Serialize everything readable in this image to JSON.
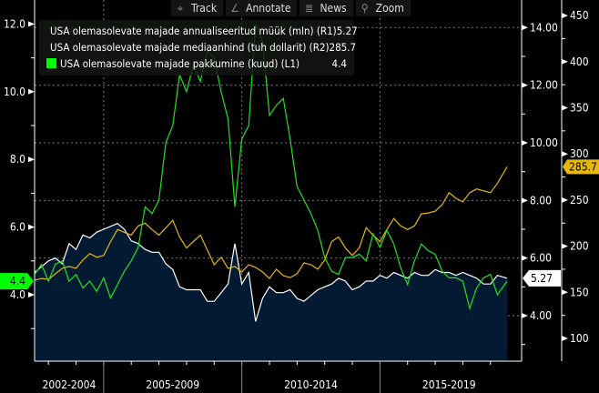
{
  "toolbar": {
    "buttons": [
      {
        "label": "Track",
        "icon": "crosshair-icon"
      },
      {
        "label": "Annotate",
        "icon": "pencil-icon"
      },
      {
        "label": "News",
        "icon": "news-icon"
      },
      {
        "label": "Zoom",
        "icon": "magnifier-icon"
      }
    ]
  },
  "legend": [
    {
      "label": "USA olemasolevate majade annualiseeritud müük (mln) (R1)",
      "value": "5.27",
      "color": "#ffffff"
    },
    {
      "label": "USA olemasolevate majade mediaanhind (tuh dollarit) (R2)",
      "value": "285.7",
      "color": "#e5b80b"
    },
    {
      "label": "USA olemasolevate majade pakkumine (kuud) (L1)",
      "value": "4.4",
      "color": "#00ff00"
    }
  ],
  "badges": {
    "left_value": "4.4",
    "r1_value": "5.27",
    "r2_value": "285.7"
  },
  "colors": {
    "background": "#000000",
    "area_fill": "#021b33",
    "sales": "#ffffff",
    "price": "#e5b80b",
    "supply": "#22e022",
    "grid": "#777777"
  },
  "chart_data": {
    "type": "line",
    "title": "",
    "x_period_labels": [
      "2002-2004",
      "2005-2009",
      "2010-2014",
      "2015-2019"
    ],
    "x_range_years": [
      2002.5,
      2019.6
    ],
    "axes": {
      "L1": {
        "ticks": [
          "4.0",
          "6.0",
          "8.0",
          "10.0",
          "12.0"
        ],
        "range": [
          1.8,
          12.8
        ]
      },
      "R1": {
        "ticks": [
          "4.00",
          "6.00",
          "8.00",
          "10.00",
          "12.00",
          "14.00"
        ],
        "range": [
          2.4,
          14.8
        ]
      },
      "R2": {
        "ticks": [
          "100",
          "150",
          "200",
          "250",
          "300",
          "350",
          "400",
          "450"
        ],
        "range": [
          75,
          460
        ]
      }
    },
    "grid": true,
    "legend_position": "top-left",
    "series": [
      {
        "name": "USA olemasolevate majade annualiseeritud müük (mln) (R1)",
        "axis": "R1",
        "style": "area",
        "x": [
          2002.5,
          2002.75,
          2003.0,
          2003.25,
          2003.5,
          2003.75,
          2004.0,
          2004.25,
          2004.5,
          2004.75,
          2005.0,
          2005.25,
          2005.5,
          2005.75,
          2006.0,
          2006.25,
          2006.5,
          2006.75,
          2007.0,
          2007.25,
          2007.5,
          2007.75,
          2008.0,
          2008.25,
          2008.5,
          2008.75,
          2009.0,
          2009.25,
          2009.5,
          2009.75,
          2010.0,
          2010.25,
          2010.5,
          2010.75,
          2011.0,
          2011.25,
          2011.5,
          2011.75,
          2012.0,
          2012.25,
          2012.5,
          2012.75,
          2013.0,
          2013.25,
          2013.5,
          2013.75,
          2014.0,
          2014.25,
          2014.5,
          2014.75,
          2015.0,
          2015.25,
          2015.5,
          2015.75,
          2016.0,
          2016.25,
          2016.5,
          2016.75,
          2017.0,
          2017.25,
          2017.5,
          2017.75,
          2018.0,
          2018.25,
          2018.5,
          2018.75,
          2019.0,
          2019.25,
          2019.6
        ],
        "values": [
          5.5,
          5.7,
          5.9,
          6.0,
          5.8,
          6.5,
          6.3,
          6.8,
          6.7,
          6.9,
          7.0,
          7.1,
          7.2,
          7.0,
          6.6,
          6.5,
          6.3,
          6.2,
          6.2,
          5.8,
          5.6,
          5.0,
          4.9,
          4.9,
          4.9,
          4.5,
          4.5,
          4.8,
          5.1,
          6.5,
          5.1,
          5.5,
          3.8,
          4.6,
          5.0,
          4.8,
          4.8,
          4.9,
          4.6,
          4.5,
          4.7,
          4.9,
          5.0,
          5.1,
          5.3,
          5.2,
          4.9,
          5.0,
          5.2,
          5.2,
          5.4,
          5.3,
          5.5,
          5.4,
          5.3,
          5.5,
          5.4,
          5.4,
          5.6,
          5.5,
          5.5,
          5.4,
          5.5,
          5.4,
          5.3,
          5.1,
          5.1,
          5.4,
          5.3
        ]
      },
      {
        "name": "USA olemasolevate majade mediaanhind (tuh dollarit) (R2)",
        "axis": "R2",
        "style": "line",
        "x": [
          2002.5,
          2002.75,
          2003.0,
          2003.25,
          2003.5,
          2003.75,
          2004.0,
          2004.25,
          2004.5,
          2004.75,
          2005.0,
          2005.25,
          2005.5,
          2005.75,
          2006.0,
          2006.25,
          2006.5,
          2006.75,
          2007.0,
          2007.25,
          2007.5,
          2007.75,
          2008.0,
          2008.25,
          2008.5,
          2008.75,
          2009.0,
          2009.25,
          2009.5,
          2009.75,
          2010.0,
          2010.25,
          2010.5,
          2010.75,
          2011.0,
          2011.25,
          2011.5,
          2011.75,
          2012.0,
          2012.25,
          2012.5,
          2012.75,
          2013.0,
          2013.25,
          2013.5,
          2013.75,
          2014.0,
          2014.25,
          2014.5,
          2014.75,
          2015.0,
          2015.25,
          2015.5,
          2015.75,
          2016.0,
          2016.25,
          2016.5,
          2016.75,
          2017.0,
          2017.25,
          2017.5,
          2017.75,
          2018.0,
          2018.25,
          2018.5,
          2018.75,
          2019.0,
          2019.25,
          2019.6
        ],
        "values": [
          163,
          165,
          164,
          170,
          176,
          178,
          176,
          185,
          192,
          188,
          190,
          205,
          218,
          215,
          212,
          222,
          225,
          218,
          212,
          220,
          228,
          210,
          198,
          205,
          212,
          196,
          180,
          188,
          176,
          178,
          172,
          180,
          177,
          172,
          165,
          175,
          168,
          166,
          170,
          182,
          180,
          175,
          185,
          205,
          210,
          198,
          190,
          198,
          220,
          212,
          205,
          218,
          230,
          222,
          218,
          222,
          235,
          236,
          238,
          245,
          258,
          252,
          248,
          258,
          262,
          260,
          258,
          268,
          286
        ]
      },
      {
        "name": "USA olemasolevate majade pakkumine (kuud) (L1)",
        "axis": "L1",
        "style": "line",
        "x": [
          2002.5,
          2002.75,
          2003.0,
          2003.25,
          2003.5,
          2003.75,
          2004.0,
          2004.25,
          2004.5,
          2004.75,
          2005.0,
          2005.25,
          2005.5,
          2005.75,
          2006.0,
          2006.25,
          2006.5,
          2006.75,
          2007.0,
          2007.25,
          2007.5,
          2007.75,
          2008.0,
          2008.25,
          2008.5,
          2008.75,
          2009.0,
          2009.25,
          2009.5,
          2009.75,
          2010.0,
          2010.25,
          2010.5,
          2010.75,
          2011.0,
          2011.25,
          2011.5,
          2011.75,
          2012.0,
          2012.25,
          2012.5,
          2012.75,
          2013.0,
          2013.25,
          2013.5,
          2013.75,
          2014.0,
          2014.25,
          2014.5,
          2014.75,
          2015.0,
          2015.25,
          2015.5,
          2015.75,
          2016.0,
          2016.25,
          2016.5,
          2016.75,
          2017.0,
          2017.25,
          2017.5,
          2017.75,
          2018.0,
          2018.25,
          2018.5,
          2018.75,
          2019.0,
          2019.25,
          2019.6
        ],
        "values": [
          4.6,
          4.9,
          4.4,
          4.9,
          5.0,
          4.4,
          4.6,
          4.2,
          4.4,
          4.1,
          4.5,
          3.9,
          4.3,
          4.7,
          5.0,
          5.4,
          6.6,
          6.4,
          6.8,
          8.5,
          9.0,
          10.5,
          10.0,
          10.8,
          10.3,
          11.2,
          11.0,
          10.0,
          9.2,
          6.6,
          8.6,
          9.0,
          12.0,
          11.5,
          9.3,
          9.6,
          9.8,
          8.6,
          7.2,
          6.8,
          6.4,
          5.9,
          5.1,
          4.7,
          4.6,
          5.1,
          5.1,
          5.2,
          5.0,
          5.8,
          5.4,
          5.9,
          5.5,
          4.8,
          4.3,
          5.0,
          5.5,
          5.3,
          5.2,
          4.7,
          4.5,
          4.5,
          4.4,
          3.6,
          4.2,
          4.5,
          4.6,
          4.0,
          4.4
        ]
      }
    ]
  }
}
